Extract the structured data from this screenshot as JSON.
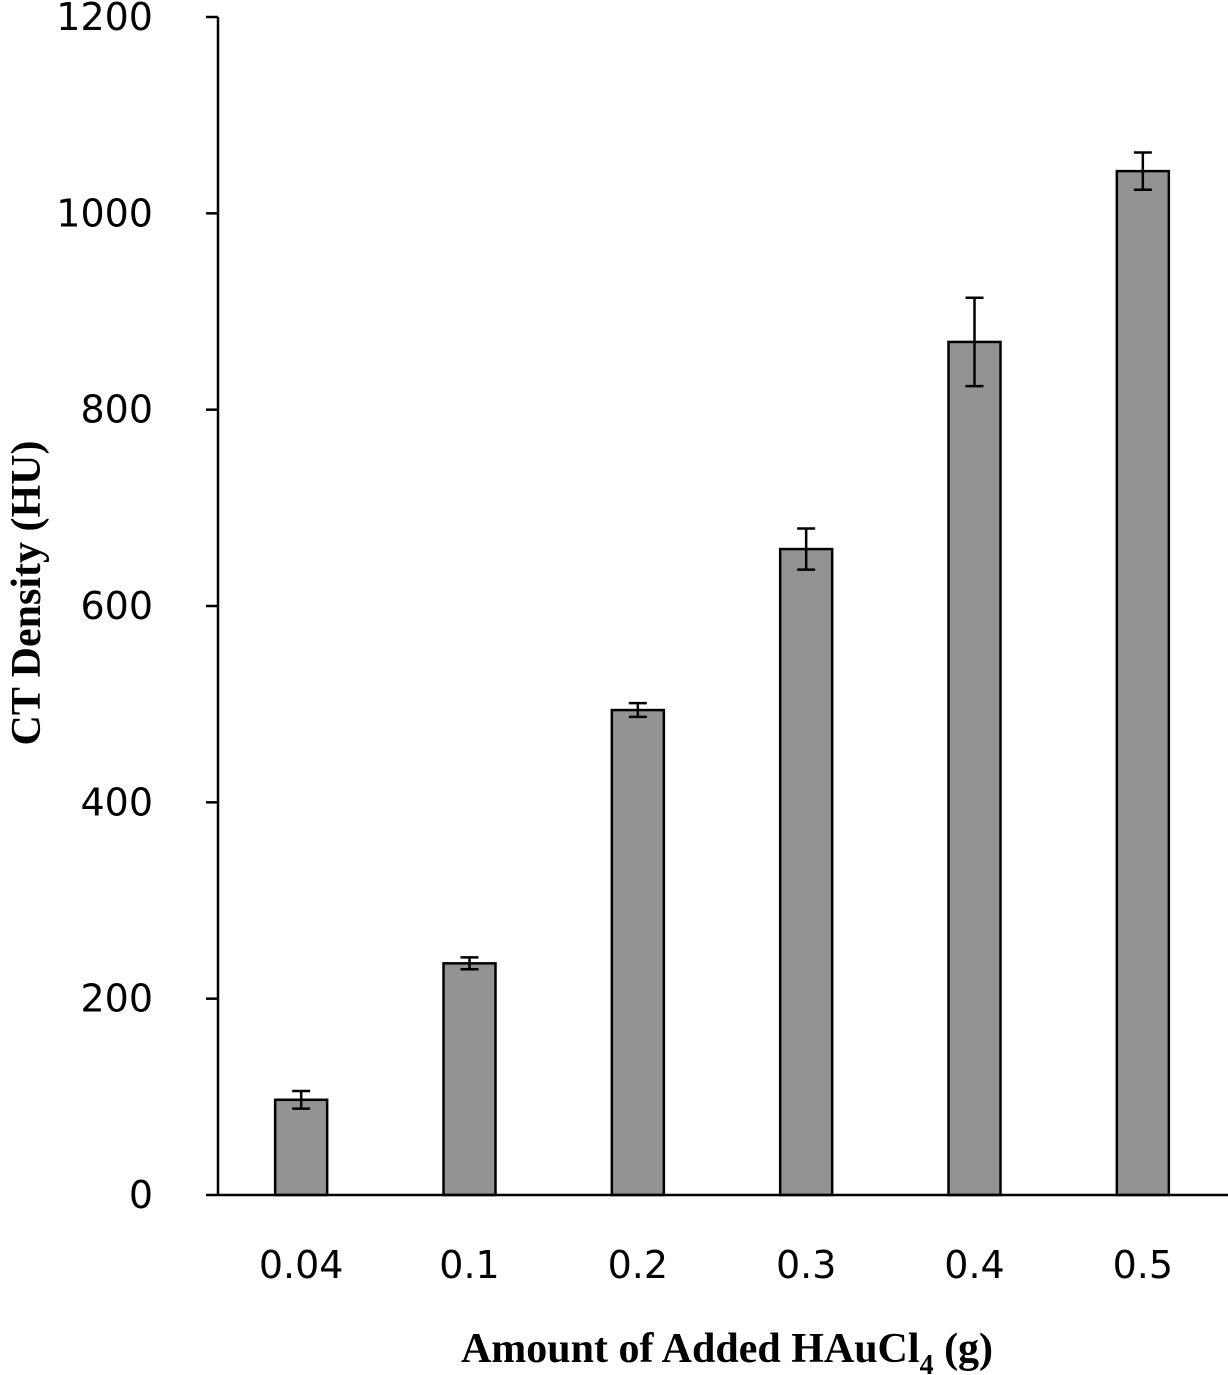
{
  "chart_data": {
    "type": "bar",
    "categories": [
      "0.04",
      "0.1",
      "0.2",
      "0.3",
      "0.4",
      "0.5"
    ],
    "values": [
      97,
      236,
      494,
      658,
      869,
      1043
    ],
    "errors": [
      9,
      6,
      7,
      21,
      45,
      19
    ],
    "xlabel": "Amount of Added HAuCl",
    "xlabel_subscript": "4",
    "xlabel_suffix": " (g)",
    "ylabel": "CT Density (HU)",
    "ylim": [
      0,
      1200
    ],
    "yticks": [
      "0",
      "200",
      "400",
      "600",
      "800",
      "1000",
      "1200"
    ],
    "grid": false,
    "bar_color": "#939393",
    "edge_color": "#000000"
  }
}
